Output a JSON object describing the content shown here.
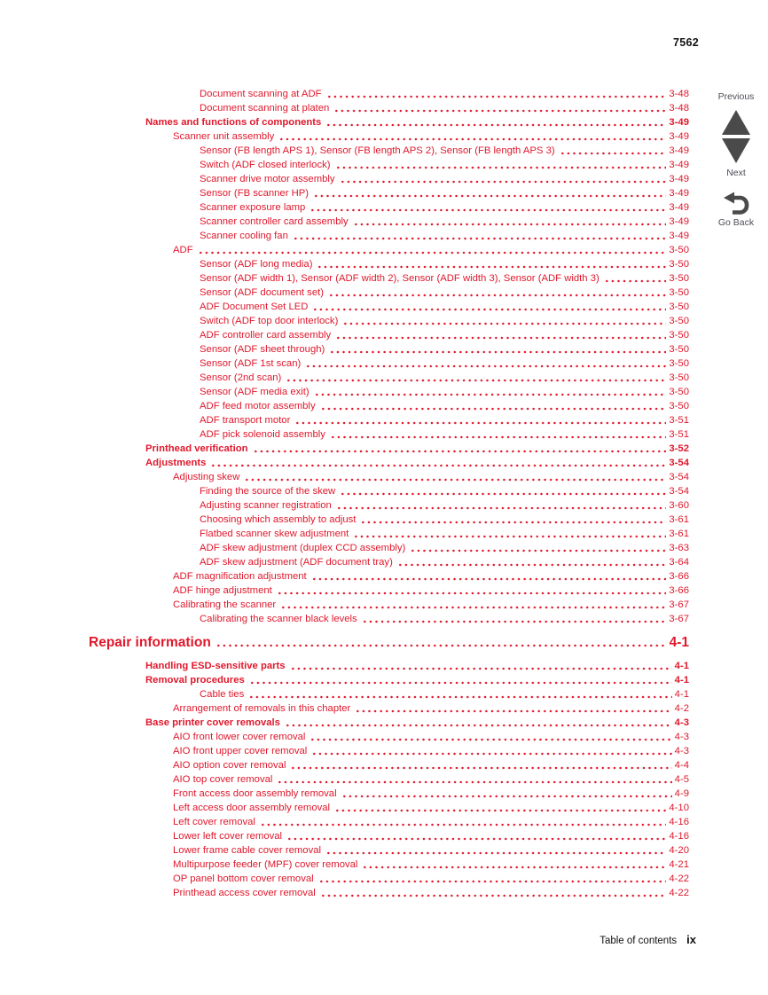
{
  "page": {
    "doc_number": "7562",
    "footer_label": "Table of contents",
    "footer_page": "ix"
  },
  "sidebar": {
    "previous_label": "Previous",
    "next_label": "Next",
    "go_back_label": "Go Back"
  },
  "colors": {
    "toc_red": "#e0182c",
    "nav_gray": "#4a4a4a",
    "text_black": "#111111"
  },
  "toc": {
    "entries": [
      {
        "text": "Document scanning at ADF",
        "page": "3-48",
        "level": 3,
        "bold": false
      },
      {
        "text": "Document scanning at platen",
        "page": "3-48",
        "level": 3,
        "bold": false
      },
      {
        "text": "Names and functions of components",
        "page": "3-49",
        "level": 1,
        "bold": true
      },
      {
        "text": "Scanner unit assembly",
        "page": "3-49",
        "level": 2,
        "bold": false
      },
      {
        "text": "Sensor (FB length APS 1), Sensor (FB length APS 2), Sensor (FB length APS 3)",
        "page": "3-49",
        "level": 3,
        "bold": false
      },
      {
        "text": "Switch (ADF closed interlock)",
        "page": "3-49",
        "level": 3,
        "bold": false
      },
      {
        "text": "Scanner drive motor assembly",
        "page": "3-49",
        "level": 3,
        "bold": false
      },
      {
        "text": "Sensor (FB scanner HP)",
        "page": "3-49",
        "level": 3,
        "bold": false
      },
      {
        "text": "Scanner exposure lamp",
        "page": "3-49",
        "level": 3,
        "bold": false
      },
      {
        "text": "Scanner controller card assembly",
        "page": "3-49",
        "level": 3,
        "bold": false
      },
      {
        "text": "Scanner cooling fan",
        "page": "3-49",
        "level": 3,
        "bold": false
      },
      {
        "text": "ADF",
        "page": "3-50",
        "level": 2,
        "bold": false
      },
      {
        "text": "Sensor (ADF long media)",
        "page": "3-50",
        "level": 3,
        "bold": false
      },
      {
        "text": "Sensor (ADF width 1), Sensor (ADF width 2), Sensor (ADF width 3), Sensor (ADF width 3)",
        "page": "3-50",
        "level": 3,
        "bold": false
      },
      {
        "text": "Sensor (ADF document set)",
        "page": "3-50",
        "level": 3,
        "bold": false
      },
      {
        "text": "ADF Document Set LED",
        "page": "3-50",
        "level": 3,
        "bold": false
      },
      {
        "text": "Switch (ADF top door interlock)",
        "page": "3-50",
        "level": 3,
        "bold": false
      },
      {
        "text": "ADF controller card assembly",
        "page": "3-50",
        "level": 3,
        "bold": false
      },
      {
        "text": "Sensor (ADF sheet through)",
        "page": "3-50",
        "level": 3,
        "bold": false
      },
      {
        "text": "Sensor (ADF 1st scan)",
        "page": "3-50",
        "level": 3,
        "bold": false
      },
      {
        "text": "Sensor (2nd scan)",
        "page": "3-50",
        "level": 3,
        "bold": false
      },
      {
        "text": "Sensor (ADF media exit)",
        "page": "3-50",
        "level": 3,
        "bold": false
      },
      {
        "text": "ADF feed motor assembly",
        "page": "3-50",
        "level": 3,
        "bold": false
      },
      {
        "text": "ADF transport motor",
        "page": "3-51",
        "level": 3,
        "bold": false
      },
      {
        "text": "ADF pick solenoid assembly",
        "page": "3-51",
        "level": 3,
        "bold": false
      },
      {
        "text": "Printhead verification",
        "page": "3-52",
        "level": 1,
        "bold": true
      },
      {
        "text": "Adjustments",
        "page": "3-54",
        "level": 1,
        "bold": true
      },
      {
        "text": "Adjusting skew",
        "page": "3-54",
        "level": 2,
        "bold": false
      },
      {
        "text": "Finding the source of the skew",
        "page": "3-54",
        "level": 3,
        "bold": false
      },
      {
        "text": "Adjusting scanner registration",
        "page": "3-60",
        "level": 3,
        "bold": false
      },
      {
        "text": "Choosing which assembly to adjust",
        "page": "3-61",
        "level": 3,
        "bold": false
      },
      {
        "text": "Flatbed scanner skew adjustment",
        "page": "3-61",
        "level": 3,
        "bold": false
      },
      {
        "text": "ADF skew adjustment (duplex CCD assembly)",
        "page": "3-63",
        "level": 3,
        "bold": false
      },
      {
        "text": "ADF skew adjustment (ADF document tray)",
        "page": "3-64",
        "level": 3,
        "bold": false
      },
      {
        "text": "ADF magnification adjustment",
        "page": "3-66",
        "level": 2,
        "bold": false
      },
      {
        "text": "ADF hinge adjustment",
        "page": "3-66",
        "level": 2,
        "bold": false
      },
      {
        "text": "Calibrating the scanner",
        "page": "3-67",
        "level": 2,
        "bold": false
      },
      {
        "text": "Calibrating the scanner black levels",
        "page": "3-67",
        "level": 3,
        "bold": false
      },
      {
        "text": "Repair information",
        "page": "4-1",
        "level": 0,
        "bold": true,
        "chapter": true
      },
      {
        "text": "Handling ESD-sensitive parts",
        "page": "4-1",
        "level": 1,
        "bold": true
      },
      {
        "text": "Removal procedures",
        "page": "4-1",
        "level": 1,
        "bold": true
      },
      {
        "text": "Cable ties",
        "page": "4-1",
        "level": 3,
        "bold": false
      },
      {
        "text": "Arrangement of removals in this chapter",
        "page": "4-2",
        "level": 2,
        "bold": false
      },
      {
        "text": "Base printer cover removals",
        "page": "4-3",
        "level": 1,
        "bold": true
      },
      {
        "text": "AIO front lower cover removal",
        "page": "4-3",
        "level": 2,
        "bold": false
      },
      {
        "text": "AIO front upper cover removal",
        "page": "4-3",
        "level": 2,
        "bold": false
      },
      {
        "text": "AIO option cover removal",
        "page": "4-4",
        "level": 2,
        "bold": false
      },
      {
        "text": "AIO top cover removal",
        "page": "4-5",
        "level": 2,
        "bold": false
      },
      {
        "text": "Front access door assembly removal",
        "page": "4-9",
        "level": 2,
        "bold": false
      },
      {
        "text": "Left access door assembly removal",
        "page": "4-10",
        "level": 2,
        "bold": false
      },
      {
        "text": "Left cover removal",
        "page": "4-16",
        "level": 2,
        "bold": false
      },
      {
        "text": "Lower left cover removal",
        "page": "4-16",
        "level": 2,
        "bold": false
      },
      {
        "text": "Lower frame cable cover removal",
        "page": "4-20",
        "level": 2,
        "bold": false
      },
      {
        "text": "Multipurpose feeder (MPF) cover removal",
        "page": "4-21",
        "level": 2,
        "bold": false
      },
      {
        "text": "OP panel bottom cover removal",
        "page": "4-22",
        "level": 2,
        "bold": false
      },
      {
        "text": "Printhead access cover removal",
        "page": "4-22",
        "level": 2,
        "bold": false
      }
    ]
  }
}
